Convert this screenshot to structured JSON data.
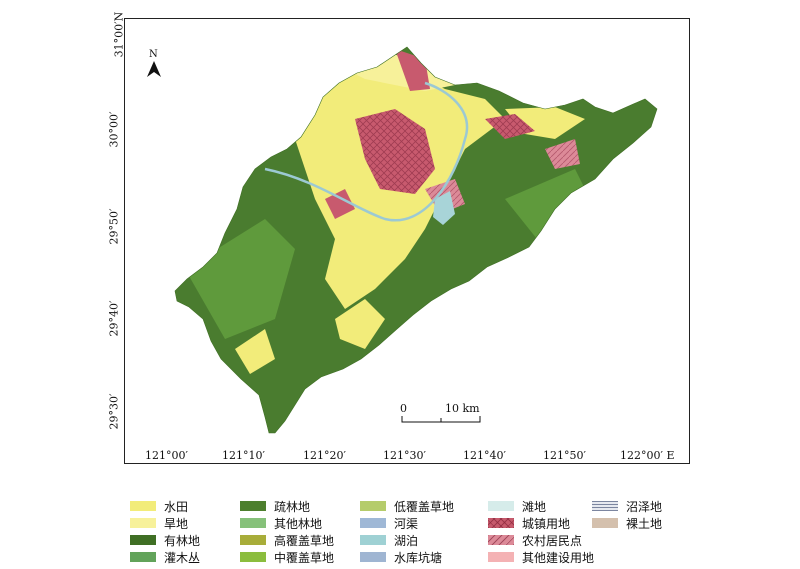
{
  "map": {
    "lon_labels": [
      "121°00′",
      "121°10′",
      "121°20′",
      "121°30′",
      "121°40′",
      "121°50′",
      "122°00′ E"
    ],
    "lat_labels": [
      "31°00′N",
      "30°00′",
      "29°50′",
      "29°40′",
      "29°30′"
    ],
    "north_arrow": {
      "letter": "N",
      "icon": "north-arrow-icon"
    },
    "scale_bar": {
      "start_label": "0",
      "end_label": "10 km"
    },
    "colors": {
      "paddy": "#f2ec7a",
      "dry": "#f7f19a",
      "forest": "#4a7c2f",
      "sparse": "#5f9a3c",
      "urban": "#c85a6e",
      "rural": "#d88a98",
      "water": "#a8d4d8",
      "river": "#9cc9d3",
      "other_build": "#f2b8bc",
      "grass": "#8cbf4a"
    }
  },
  "legend": [
    {
      "label": "水田",
      "color": "#f2ec7a",
      "icon": "paddy-swatch"
    },
    {
      "label": "旱地",
      "color": "#f7f19a",
      "icon": "dry-land-swatch"
    },
    {
      "label": "有林地",
      "color": "#3f6f24",
      "icon": "forest-swatch"
    },
    {
      "label": "灌木丛",
      "color": "#62a35a",
      "icon": "shrub-swatch"
    },
    {
      "label": "疏林地",
      "color": "#4d7f2e",
      "icon": "sparse-forest-swatch"
    },
    {
      "label": "其他林地",
      "color": "#86c17a",
      "icon": "other-forest-swatch"
    },
    {
      "label": "高覆盖草地",
      "color": "#a8ad3a",
      "icon": "high-grass-swatch"
    },
    {
      "label": "中覆盖草地",
      "color": "#8bbd3e",
      "icon": "mid-grass-swatch"
    },
    {
      "label": "低覆盖草地",
      "color": "#b5cc6b",
      "icon": "low-grass-swatch"
    },
    {
      "label": "河渠",
      "color": "#9fb8d6",
      "icon": "canal-swatch"
    },
    {
      "label": "湖泊",
      "color": "#9fd1d4",
      "icon": "lake-swatch"
    },
    {
      "label": "水库坑塘",
      "color": "#9fb5d2",
      "icon": "reservoir-swatch"
    },
    {
      "label": "滩地",
      "color": "#d6ecea",
      "icon": "beach-swatch"
    },
    {
      "label": "城镇用地",
      "color": "#c65a6c",
      "icon": "urban-swatch",
      "pattern": "cross"
    },
    {
      "label": "农村居民点",
      "color": "#dc8a98",
      "icon": "rural-swatch",
      "pattern": "diag"
    },
    {
      "label": "其他建设用地",
      "color": "#f4b2b4",
      "icon": "other-construction-swatch"
    },
    {
      "label": "沼泽地",
      "color": "#9aa3b8",
      "icon": "marsh-swatch",
      "pattern": "marsh"
    },
    {
      "label": "裸土地",
      "color": "#d4c0ad",
      "icon": "bare-land-swatch"
    }
  ]
}
